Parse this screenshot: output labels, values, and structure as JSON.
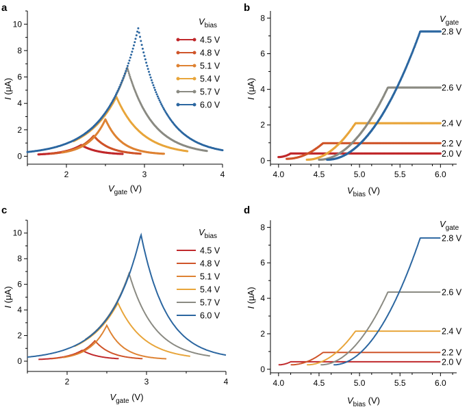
{
  "figure": {
    "panel_letters": [
      "a",
      "b",
      "c",
      "d"
    ]
  },
  "colors": {
    "4.5 V": "#c0282b",
    "4.8 V": "#cf5429",
    "5.1 V": "#de8232",
    "5.4 V": "#e8a53a",
    "5.7 V": "#8a8a82",
    "6.0 V": "#2b66a0",
    "2.0 V": "#c0282b",
    "2.2 V": "#cf5429",
    "2.4 V": "#e8a53a",
    "2.6 V": "#8a8a82",
    "2.8 V": "#2b66a0"
  },
  "chart_data": [
    {
      "panel": "a",
      "type": "scatter",
      "style": "markers",
      "title": "",
      "xlabel": "V",
      "xlabel_sub": "gate",
      "xlabel_unit": " (V)",
      "ylabel": "I",
      "ylabel_unit": " (μA)",
      "xlim": [
        1.5,
        4.0
      ],
      "ylim": [
        -0.6,
        11
      ],
      "xticks": [
        "2",
        "3",
        "4"
      ],
      "yticks": [
        "0",
        "2",
        "4",
        "6",
        "8",
        "10"
      ],
      "legend_title": "V",
      "legend_title_sub": "bias",
      "series": [
        {
          "name": "4.5 V",
          "peak_x": 2.19,
          "peak_y": 0.85,
          "end_x": 2.72
        },
        {
          "name": "4.8 V",
          "peak_x": 2.35,
          "peak_y": 1.55,
          "end_x": 2.95
        },
        {
          "name": "5.1 V",
          "peak_x": 2.5,
          "peak_y": 2.8,
          "end_x": 3.25
        },
        {
          "name": "5.4 V",
          "peak_x": 2.64,
          "peak_y": 4.5,
          "end_x": 3.55
        },
        {
          "name": "5.7 V",
          "peak_x": 2.78,
          "peak_y": 6.7,
          "end_x": 3.8
        },
        {
          "name": "6.0 V",
          "peak_x": 2.92,
          "peak_y": 9.7,
          "end_x": 4.0
        }
      ]
    },
    {
      "panel": "b",
      "type": "scatter",
      "style": "markers",
      "title": "",
      "xlabel": "V",
      "xlabel_sub": "bias",
      "xlabel_unit": " (V)",
      "ylabel": "I",
      "ylabel_unit": " (μA)",
      "xlim": [
        3.9,
        6.2
      ],
      "ylim": [
        -0.2,
        8.4
      ],
      "xticks": [
        "4.0",
        "4.5",
        "5.0",
        "5.5",
        "6.0"
      ],
      "yticks": [
        "0",
        "2",
        "4",
        "6",
        "8"
      ],
      "legend_title": "V",
      "legend_title_sub": "gate",
      "series": [
        {
          "name": "2.0 V",
          "x0": 4.0,
          "y0": 0.2,
          "x1": 4.15,
          "y1": 0.4,
          "sat_x": 4.15,
          "sat_y": 0.4
        },
        {
          "name": "2.2 V",
          "x0": 4.1,
          "y0": 0.1,
          "x1": 4.55,
          "y1": 0.98,
          "sat_x": 4.55,
          "sat_y": 0.98
        },
        {
          "name": "2.4 V",
          "x0": 4.35,
          "y0": 0.05,
          "x1": 4.95,
          "y1": 2.1,
          "sat_x": 4.95,
          "sat_y": 2.1
        },
        {
          "name": "2.6 V",
          "x0": 4.5,
          "y0": 0.05,
          "x1": 5.35,
          "y1": 4.1,
          "sat_x": 5.35,
          "sat_y": 4.1
        },
        {
          "name": "2.8 V",
          "x0": 4.6,
          "y0": 0.05,
          "x1": 5.75,
          "y1": 7.25,
          "sat_x": 5.75,
          "sat_y": 7.25
        }
      ]
    },
    {
      "panel": "c",
      "type": "line",
      "style": "lines",
      "title": "",
      "xlabel": "V",
      "xlabel_sub": "gate",
      "xlabel_unit": " (V)",
      "ylabel": "I",
      "ylabel_unit": " (μA)",
      "xlim": [
        1.5,
        4.0
      ],
      "ylim": [
        -0.8,
        11
      ],
      "xticks": [
        "2",
        "3",
        "4"
      ],
      "yticks": [
        "0",
        "2",
        "4",
        "6",
        "8",
        "10"
      ],
      "legend_title": "V",
      "legend_title_sub": "bias",
      "series": [
        {
          "name": "4.5 V",
          "peak_x": 2.19,
          "peak_y": 0.85,
          "end_x": 2.65
        },
        {
          "name": "4.8 V",
          "peak_x": 2.35,
          "peak_y": 1.6,
          "end_x": 2.95
        },
        {
          "name": "5.1 V",
          "peak_x": 2.5,
          "peak_y": 2.8,
          "end_x": 3.25
        },
        {
          "name": "5.4 V",
          "peak_x": 2.64,
          "peak_y": 4.55,
          "end_x": 3.55
        },
        {
          "name": "5.7 V",
          "peak_x": 2.78,
          "peak_y": 6.85,
          "end_x": 3.8
        },
        {
          "name": "6.0 V",
          "peak_x": 2.93,
          "peak_y": 9.9,
          "end_x": 4.0
        }
      ]
    },
    {
      "panel": "d",
      "type": "line",
      "style": "lines",
      "title": "",
      "xlabel": "V",
      "xlabel_sub": "bias",
      "xlabel_unit": " (V)",
      "ylabel": "I",
      "ylabel_unit": " (μA)",
      "xlim": [
        3.9,
        6.2
      ],
      "ylim": [
        -0.2,
        8.4
      ],
      "xticks": [
        "4.0",
        "4.5",
        "5.0",
        "5.5",
        "6.0"
      ],
      "yticks": [
        "0",
        "2",
        "4",
        "6",
        "8"
      ],
      "legend_title": "V",
      "legend_title_sub": "gate",
      "series": [
        {
          "name": "2.0 V",
          "x0": 4.0,
          "y0": 0.25,
          "x1": 4.15,
          "y1": 0.42,
          "sat_x": 4.15,
          "sat_y": 0.42
        },
        {
          "name": "2.2 V",
          "x0": 4.15,
          "y0": 0.25,
          "x1": 4.55,
          "y1": 0.95,
          "sat_x": 4.55,
          "sat_y": 0.95
        },
        {
          "name": "2.4 V",
          "x0": 4.35,
          "y0": 0.25,
          "x1": 4.95,
          "y1": 2.15,
          "sat_x": 4.95,
          "sat_y": 2.15
        },
        {
          "name": "2.6 V",
          "x0": 4.52,
          "y0": 0.25,
          "x1": 5.35,
          "y1": 4.35,
          "sat_x": 5.35,
          "sat_y": 4.35
        },
        {
          "name": "2.8 V",
          "x0": 4.68,
          "y0": 0.25,
          "x1": 5.75,
          "y1": 7.4,
          "sat_x": 5.75,
          "sat_y": 7.4
        }
      ]
    }
  ]
}
